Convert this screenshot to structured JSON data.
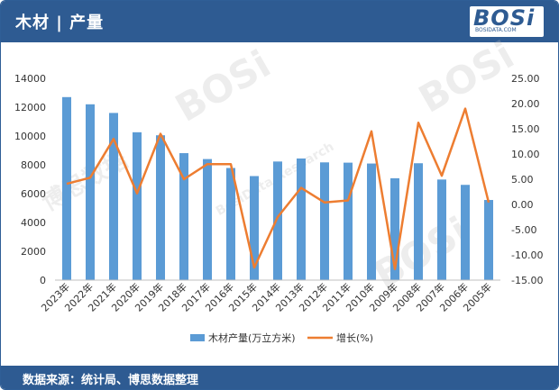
{
  "header": {
    "title": "木材 | 产量"
  },
  "logo": {
    "text": "BOSi",
    "sub": "BOSIDATA.COM"
  },
  "footer": {
    "source": "数据来源：统计局、博思数据整理"
  },
  "watermarks": [
    "BOSi",
    "BOSi",
    "BOSi",
    "博思数据",
    "BosiData Research"
  ],
  "colors": {
    "bar": "#5b9bd5",
    "line": "#ed7d31",
    "header": "#2e5b92"
  },
  "chart_data": {
    "type": "bar",
    "categories": [
      "2023年",
      "2022年",
      "2021年",
      "2020年",
      "2019年",
      "2018年",
      "2017年",
      "2016年",
      "2015年",
      "2014年",
      "2013年",
      "2012年",
      "2011年",
      "2010年",
      "2009年",
      "2008年",
      "2007年",
      "2006年",
      "2005年"
    ],
    "series": [
      {
        "name": "木材产量(万立方米)",
        "type": "bar",
        "axis": "left",
        "values": [
          12700,
          12200,
          11600,
          10260,
          10050,
          8810,
          8400,
          7780,
          7220,
          8230,
          8440,
          8170,
          8150,
          8090,
          7070,
          8110,
          6980,
          6610,
          5560
        ]
      },
      {
        "name": "增长(%)",
        "type": "line",
        "axis": "right",
        "values": [
          4.1,
          5.3,
          13.0,
          2.2,
          14.0,
          5.0,
          8.0,
          8.0,
          -12.5,
          -2.5,
          3.3,
          0.4,
          0.8,
          14.5,
          -12.8,
          16.2,
          5.7,
          19.0,
          0.4
        ]
      }
    ],
    "y_left": {
      "min": 0,
      "max": 14000,
      "step": 2000,
      "ticks": [
        "0",
        "2000",
        "4000",
        "6000",
        "8000",
        "10000",
        "12000",
        "14000"
      ]
    },
    "y_right": {
      "min": -15,
      "max": 25,
      "step": 5,
      "ticks": [
        "-15.00",
        "-10.00",
        "-5.00",
        "0.00",
        "5.00",
        "10.00",
        "15.00",
        "20.00",
        "25.00"
      ]
    },
    "legend": {
      "position": "bottom"
    },
    "grid": false
  }
}
